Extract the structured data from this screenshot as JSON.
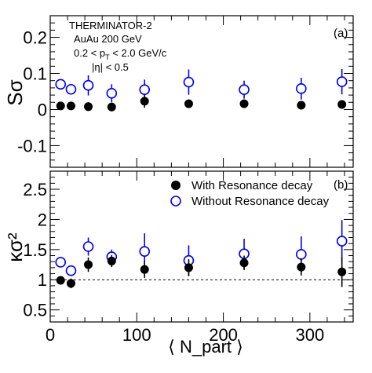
{
  "chart_data": [
    {
      "type": "scatter",
      "panel_label": "(a)",
      "ylabel": "Sσ",
      "xlim": [
        0,
        350
      ],
      "ylim": [
        -0.16,
        0.26
      ],
      "yticks": [
        "-0.1",
        "0",
        "0.1",
        "0.2"
      ],
      "ytick_values": [
        -0.1,
        0,
        0.1,
        0.2
      ],
      "annotation": {
        "line1": "THERMINATOR-2",
        "line2": "AuAu 200 GeV",
        "line3_pre": "0.2 < p",
        "line3_sub": "T",
        "line3_post": " < 2.0 GeV/c",
        "line4": "|η| < 0.5"
      },
      "series": [
        {
          "name": "With Resonance decay",
          "marker": "filled-circle",
          "color": "#000000",
          "x": [
            12,
            24,
            44,
            71,
            109,
            160,
            224,
            290,
            337
          ],
          "y": [
            0.01,
            0.01,
            0.008,
            0.007,
            0.023,
            0.016,
            0.016,
            0.012,
            0.014
          ],
          "err": [
            0.008,
            0.008,
            0.012,
            0.012,
            0.018,
            0.012,
            0.012,
            0.012,
            0.012
          ]
        },
        {
          "name": "Without Resonance decay",
          "marker": "open-circle",
          "color": "#0000ee",
          "x": [
            12,
            24,
            44,
            71,
            109,
            160,
            224,
            290,
            337
          ],
          "y": [
            0.07,
            0.056,
            0.067,
            0.045,
            0.055,
            0.076,
            0.055,
            0.058,
            0.077
          ],
          "err": [
            0.012,
            0.012,
            0.028,
            0.025,
            0.028,
            0.035,
            0.025,
            0.03,
            0.035
          ]
        }
      ]
    },
    {
      "type": "scatter",
      "panel_label": "(b)",
      "ylabel": "κσ²",
      "xlabel": "⟨ N_part ⟩",
      "xlim": [
        0,
        350
      ],
      "ylim": [
        0.3,
        2.8
      ],
      "yticks": [
        "0.5",
        "1",
        "1.5",
        "2",
        "2.5"
      ],
      "ytick_values": [
        0.5,
        1,
        1.5,
        2,
        2.5
      ],
      "xticks": [
        "0",
        "100",
        "200",
        "300"
      ],
      "xtick_values": [
        0,
        100,
        200,
        300
      ],
      "reference_line": 1,
      "legend": {
        "placement": "top-right"
      },
      "series": [
        {
          "name": "With Resonance decay",
          "marker": "filled-circle",
          "color": "#000000",
          "x": [
            12,
            24,
            44,
            71,
            109,
            160,
            224,
            290,
            337
          ],
          "y": [
            0.99,
            0.94,
            1.25,
            1.31,
            1.17,
            1.2,
            1.28,
            1.21,
            1.13
          ],
          "err": [
            0.05,
            0.08,
            0.12,
            0.1,
            0.14,
            0.14,
            0.12,
            0.14,
            0.25
          ]
        },
        {
          "name": "Without Resonance decay",
          "marker": "open-circle",
          "color": "#0000ee",
          "x": [
            12,
            24,
            44,
            71,
            109,
            160,
            224,
            290,
            337
          ],
          "y": [
            1.29,
            1.15,
            1.55,
            1.38,
            1.47,
            1.32,
            1.43,
            1.42,
            1.64
          ],
          "err": [
            0.06,
            0.06,
            0.15,
            0.12,
            0.3,
            0.25,
            0.25,
            0.3,
            0.35
          ]
        }
      ]
    }
  ]
}
